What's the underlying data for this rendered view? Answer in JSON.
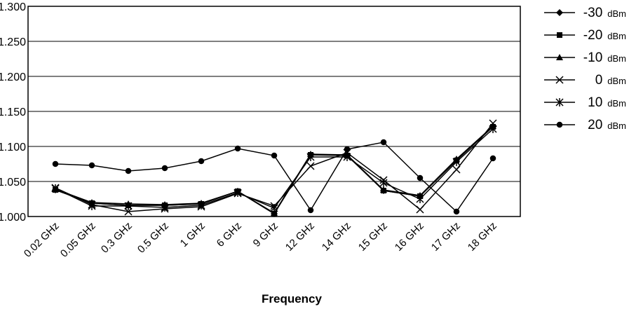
{
  "chart_data": {
    "type": "line",
    "categories": [
      "0.02 GHz",
      "0.05 GHz",
      "0.3 GHz",
      "0.5 GHz",
      "1 GHz",
      "6 GHz",
      "9 GHz",
      "12 GHz",
      "14 GHz",
      "15 GHz",
      "16 GHz",
      "17 GHz",
      "18 GHz"
    ],
    "xlabel": "Frequency",
    "ylabel": "",
    "title": "",
    "ylim": [
      1.0,
      1.3
    ],
    "yticks": [
      "1.000",
      "1.050",
      "1.100",
      "1.150",
      "1.200",
      "1.250",
      "1.300"
    ],
    "grid": "horizontal",
    "legend_position": "right",
    "series": [
      {
        "name": "-30",
        "unit": "dBm",
        "marker": "diamond",
        "values": [
          1.038,
          1.019,
          1.016,
          1.016,
          1.018,
          1.036,
          1.004,
          1.088,
          1.088,
          1.037,
          1.029,
          1.081,
          1.128
        ]
      },
      {
        "name": "-20",
        "unit": "dBm",
        "marker": "square",
        "values": [
          1.038,
          1.019,
          1.016,
          1.016,
          1.018,
          1.036,
          1.004,
          1.088,
          1.087,
          1.037,
          1.029,
          1.08,
          1.128
        ]
      },
      {
        "name": "-10",
        "unit": "dBm",
        "marker": "triangle",
        "values": [
          1.039,
          1.02,
          1.018,
          1.017,
          1.019,
          1.036,
          1.005,
          1.089,
          1.088,
          1.038,
          1.03,
          1.082,
          1.129
        ]
      },
      {
        "name": "0",
        "unit": "dBm",
        "marker": "x",
        "values": [
          1.041,
          1.017,
          1.007,
          1.011,
          1.014,
          1.033,
          1.015,
          1.072,
          1.091,
          1.052,
          1.01,
          1.067,
          1.133
        ]
      },
      {
        "name": "10",
        "unit": "dBm",
        "marker": "star",
        "values": [
          1.04,
          1.015,
          1.015,
          1.013,
          1.016,
          1.034,
          1.012,
          1.085,
          1.085,
          1.048,
          1.025,
          1.078,
          1.125
        ]
      },
      {
        "name": "20",
        "unit": "dBm",
        "marker": "circle",
        "values": [
          1.075,
          1.073,
          1.065,
          1.069,
          1.079,
          1.097,
          1.087,
          1.009,
          1.096,
          1.106,
          1.055,
          1.007,
          1.083
        ]
      }
    ]
  }
}
